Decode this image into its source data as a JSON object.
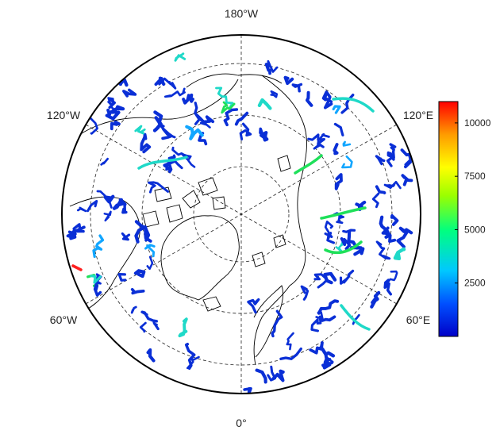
{
  "map": {
    "projection": "north polar stereographic",
    "longitude_labels": {
      "top": "180°W",
      "bottom": "0°",
      "upper_left": "120°W",
      "upper_right": "120°E",
      "lower_left": "60°W",
      "lower_right": "60°E"
    },
    "graticule": {
      "style": "dashed",
      "meridians_every_deg": 60
    },
    "colors": {
      "coast": "#000000",
      "frame": "#000000"
    }
  },
  "colorbar": {
    "ticks": [
      "10000",
      "7500",
      "5000",
      "2500"
    ],
    "tick_values": [
      10000,
      7500,
      5000,
      2500
    ],
    "range": [
      0,
      11000
    ],
    "colormap": [
      "#0000c8",
      "#0050ff",
      "#00c8ff",
      "#00ff80",
      "#9bff00",
      "#ffff00",
      "#ff9b00",
      "#ff0000"
    ]
  },
  "river_colors": {
    "low": "#0a2fd6",
    "mid": "#12a6ff",
    "teal": "#1fd9c8",
    "green": "#1fe05a",
    "high": "#ff2020"
  }
}
